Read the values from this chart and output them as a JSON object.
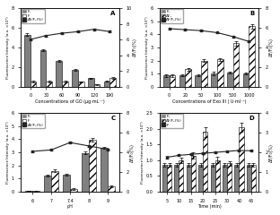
{
  "panel_A": {
    "title": "A",
    "xlabel": "Concentrations of GO (μg·mL⁻¹)",
    "ylabel_left": "Fluorescence Intensity (a.u. ×10⁴)",
    "ylabel_right": "ΔF/F₀(%)",
    "x_cats": [
      "0",
      "30",
      "60",
      "90",
      "120",
      "190"
    ],
    "bar1": [
      5.3,
      3.7,
      2.6,
      1.7,
      0.85,
      0.55
    ],
    "bar2": [
      0.55,
      0.5,
      0.52,
      0.5,
      0.25,
      0.9
    ],
    "line": [
      6.0,
      6.5,
      6.8,
      7.0,
      7.3,
      7.0
    ],
    "bar1_err": [
      0.15,
      0.12,
      0.08,
      0.08,
      0.06,
      0.05
    ],
    "bar2_err": [
      0.1,
      0.08,
      0.07,
      0.06,
      0.05,
      0.1
    ],
    "line_err": [
      0.15,
      0.12,
      0.1,
      0.1,
      0.1,
      0.12
    ],
    "ylim_left": [
      0,
      8.0
    ],
    "ylim_right": [
      0,
      10
    ],
    "yticks_left": [
      0,
      2.0,
      4.0,
      6.0,
      8.0
    ],
    "yticks_right": [
      0,
      2,
      4,
      6,
      8,
      10
    ],
    "legend": [
      "F₁",
      "F",
      "ΔF/F₀(%)"
    ],
    "legend_loc": "upper left"
  },
  "panel_B": {
    "title": "B",
    "xlabel": "Concentrations of Exo III ( U·ml⁻¹)",
    "ylabel_left": "Fluorescence Intensity (a.u. ×10⁴)",
    "ylabel_right": "ΔF/F₀(%)",
    "x_cats": [
      "0",
      "20",
      "50",
      "100",
      "500",
      "1000"
    ],
    "bar1": [
      0.85,
      0.88,
      0.88,
      1.0,
      1.1,
      1.0
    ],
    "bar2": [
      0.85,
      1.35,
      2.0,
      2.1,
      3.3,
      4.6
    ],
    "line": [
      5.9,
      5.8,
      5.7,
      5.5,
      5.1,
      4.6
    ],
    "bar1_err": [
      0.08,
      0.07,
      0.07,
      0.15,
      0.08,
      0.07
    ],
    "bar2_err": [
      0.08,
      0.1,
      0.1,
      0.1,
      0.15,
      0.15
    ],
    "line_err": [
      0.1,
      0.08,
      0.08,
      0.08,
      0.1,
      0.1
    ],
    "ylim_left": [
      0,
      6.0
    ],
    "ylim_right": [
      0,
      8
    ],
    "yticks_left": [
      0,
      1.0,
      2.0,
      3.0,
      4.0,
      5.0,
      6.0
    ],
    "yticks_right": [
      0,
      2,
      4,
      6,
      8
    ],
    "legend": [
      "F₁",
      "ΔF₁",
      "ΔF/F₀(%)"
    ],
    "legend_loc": "upper left"
  },
  "panel_C": {
    "title": "C",
    "xlabel": "pH",
    "ylabel_left": "Fluorescence Intensity (a.u. ×10⁴)",
    "ylabel_right": "ΔF/F₀(%)",
    "x_cats": [
      "6",
      "7",
      "7.4",
      "8",
      "9"
    ],
    "bar1": [
      0.08,
      1.25,
      1.3,
      2.95,
      3.35
    ],
    "bar2": [
      0.05,
      1.6,
      0.2,
      3.95,
      0.4
    ],
    "line": [
      4.1,
      4.25,
      5.0,
      4.65,
      4.3
    ],
    "bar1_err": [
      0.02,
      0.07,
      0.08,
      0.1,
      0.1
    ],
    "bar2_err": [
      0.02,
      0.1,
      0.05,
      0.12,
      0.05
    ],
    "line_err": [
      0.1,
      0.1,
      0.12,
      0.1,
      0.1
    ],
    "ylim_left": [
      0,
      6.0
    ],
    "ylim_right": [
      0,
      8
    ],
    "yticks_left": [
      0,
      1.0,
      2.0,
      3.0,
      4.0,
      5.0,
      6.0
    ],
    "yticks_right": [
      0,
      2,
      4,
      6,
      8
    ],
    "legend": [
      "F₁",
      "F",
      "ΔF/F₀(%)"
    ],
    "legend_loc": "upper left"
  },
  "panel_D": {
    "title": "D",
    "xlabel": "Time (min)",
    "ylabel_left": "Fluorescence Intensity (a.u. ×10⁴)",
    "ylabel_right": "ΔF/F₀(%)",
    "x_cats": [
      "5",
      "10",
      "15",
      "20",
      "25",
      "30",
      "40",
      "45"
    ],
    "bar1": [
      0.85,
      0.85,
      0.85,
      0.85,
      0.85,
      0.85,
      0.85,
      0.85
    ],
    "bar2": [
      0.85,
      1.0,
      1.15,
      1.9,
      1.0,
      0.9,
      2.05,
      0.85
    ],
    "line": [
      1.75,
      1.85,
      1.9,
      1.95,
      2.0,
      2.05,
      2.1,
      2.08
    ],
    "bar1_err": [
      0.05,
      0.05,
      0.05,
      0.05,
      0.05,
      0.05,
      0.05,
      0.05
    ],
    "bar2_err": [
      0.05,
      0.08,
      0.1,
      0.15,
      0.1,
      0.08,
      0.15,
      0.05
    ],
    "line_err": [
      0.05,
      0.05,
      0.05,
      0.05,
      0.05,
      0.05,
      0.05,
      0.05
    ],
    "ylim_left": [
      0,
      2.5
    ],
    "ylim_right": [
      0,
      4
    ],
    "yticks_left": [
      0,
      0.5,
      1.0,
      1.5,
      2.0,
      2.5
    ],
    "yticks_right": [
      0,
      1,
      2,
      3,
      4
    ],
    "legend": [
      "F₁",
      "ΔF/F₀(%)",
      "F"
    ],
    "legend_loc": "upper left"
  },
  "bar1_color": "#808080",
  "bar2_facecolor": "#ffffff",
  "bar2_hatch": "////",
  "line_color": "#222222",
  "bg_color": "#ffffff",
  "fig_bg": "#ffffff"
}
